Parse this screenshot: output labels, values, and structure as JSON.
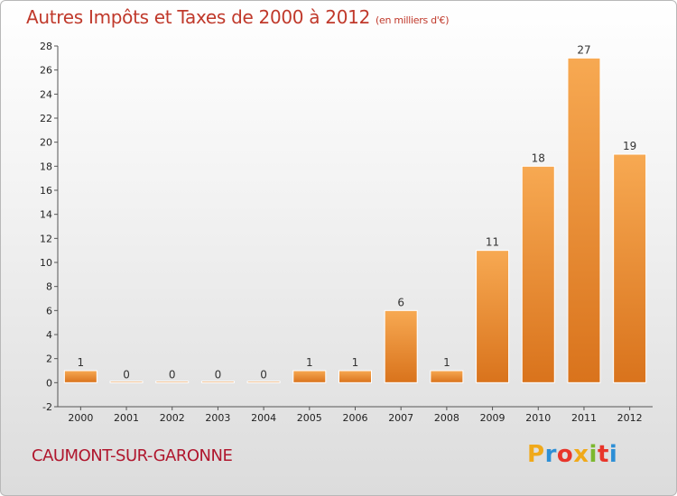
{
  "title": "Autres Impôts et Taxes de 2000 à 2012",
  "subtitle": "(en milliers d'€)",
  "commune": "CAUMONT-SUR-GARONNE",
  "logo": {
    "letters": [
      "P",
      "r",
      "o",
      "x",
      "i",
      "t",
      "i"
    ],
    "colors": [
      "#f0a91a",
      "#2d8fd6",
      "#e8352a",
      "#f0a91a",
      "#7cb82f",
      "#e8352a",
      "#2d8fd6"
    ]
  },
  "colors": {
    "bar": "#f08a2b",
    "bar_light": "#f7a952",
    "bar_dark": "#d9731c",
    "title": "#c0392b",
    "commune": "#b0172e"
  },
  "chart_data": {
    "type": "bar",
    "categories": [
      "2000",
      "2001",
      "2002",
      "2003",
      "2004",
      "2005",
      "2006",
      "2007",
      "2008",
      "2009",
      "2010",
      "2011",
      "2012"
    ],
    "values": [
      1,
      0,
      0,
      0,
      0,
      1,
      1,
      6,
      1,
      11,
      18,
      27,
      19
    ],
    "ylim": [
      -2,
      28
    ],
    "yticks": [
      -2,
      0,
      2,
      4,
      6,
      8,
      10,
      12,
      14,
      16,
      18,
      20,
      22,
      24,
      26,
      28
    ],
    "grid": false,
    "data_labels": true
  }
}
